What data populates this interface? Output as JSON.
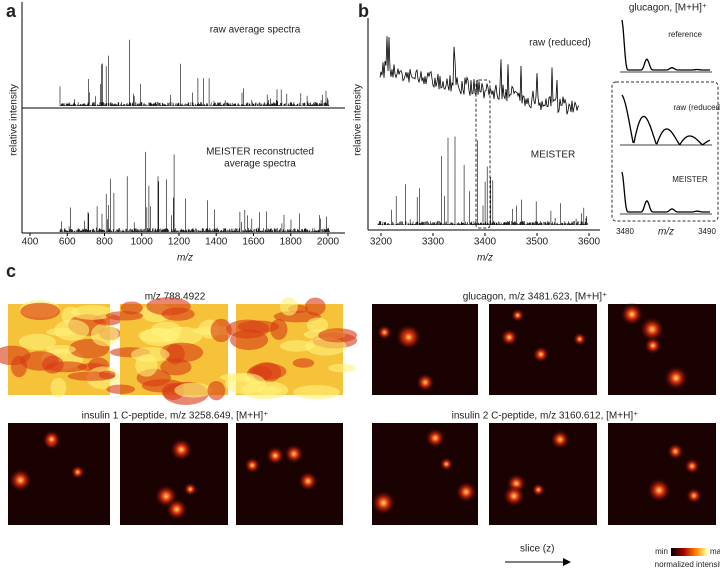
{
  "panel_a": {
    "label": "a",
    "top_text": "raw average spectra",
    "bottom_text": [
      "MEISTER reconstructed",
      "average spectra"
    ],
    "y_label": "relative intensity",
    "x_label": "m/z",
    "x_ticks": [
      400,
      600,
      800,
      1000,
      1200,
      1400,
      1600,
      1800,
      2000
    ]
  },
  "panel_b": {
    "label": "b",
    "top_text": "raw (reduced)",
    "bottom_text": "MEISTER",
    "y_label": "relative intensity",
    "x_label": "m/z",
    "x_ticks": [
      3200,
      3300,
      3400,
      3500,
      3600
    ],
    "inset": {
      "title": "glucagon, [M+H]⁺",
      "reference": "reference",
      "raw": "raw (reduced)",
      "meister": "MEISTER",
      "x_ticks": [
        3480,
        3490
      ],
      "x_label": "m/z"
    }
  },
  "panel_c": {
    "label": "c",
    "groups": [
      "m/z 788.4922",
      "glucagon, m/z 3481.623, [M+H]⁺",
      "insulin 1 C-peptide, m/z 3258.649, [M+H]⁺",
      "insulin 2 C-peptide, m/z 3160.612, [M+H]⁺"
    ],
    "slice_label": "slice (z)",
    "colorbar": {
      "min": "min",
      "max": "max",
      "title": "normalized intensity"
    }
  }
}
